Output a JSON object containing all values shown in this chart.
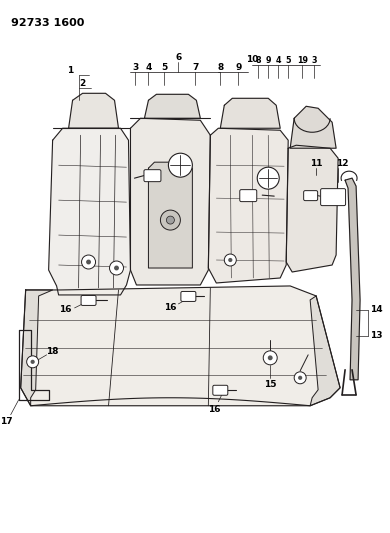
{
  "title": "92733 1600",
  "bg_color": "#ffffff",
  "line_color": "#231f20",
  "fig_width": 3.9,
  "fig_height": 5.33,
  "dpi": 100
}
